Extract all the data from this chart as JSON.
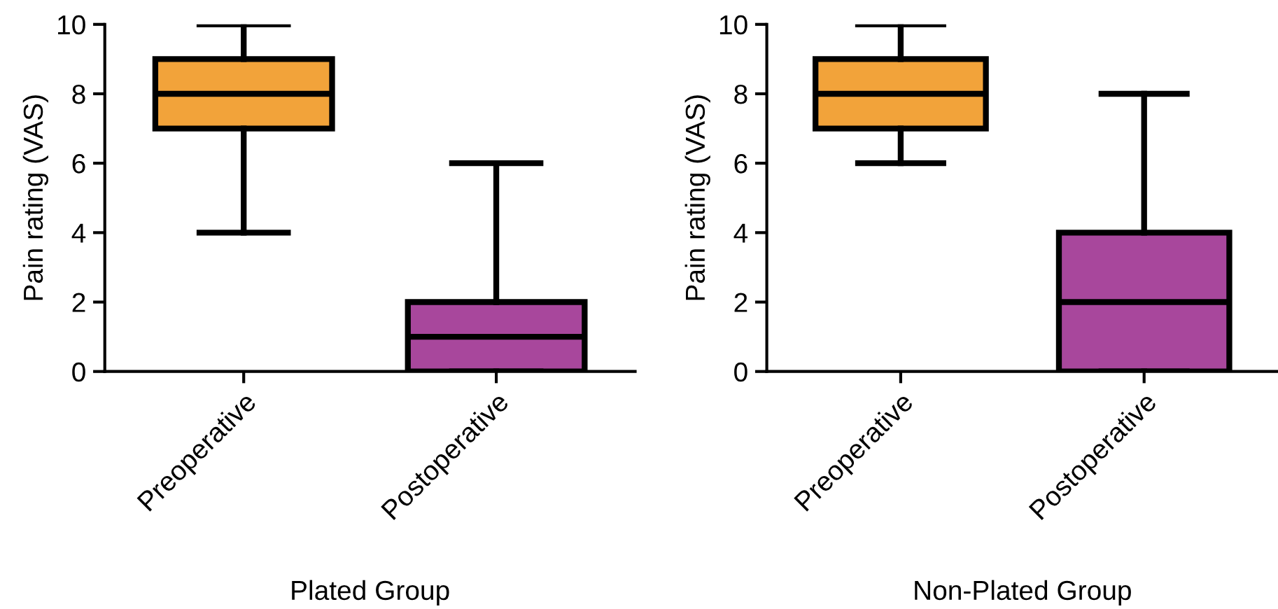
{
  "chart_data": [
    {
      "type": "box",
      "xlabel": "Plated Group",
      "ylabel": "Pain rating (VAS)",
      "categories": [
        "Preoperative",
        "Postoperative"
      ],
      "colors": [
        "#f2a33a",
        "#a8479c"
      ],
      "boxes": [
        {
          "low": 4,
          "q1": 7,
          "median": 8,
          "q3": 9,
          "high": 10
        },
        {
          "low": 0,
          "q1": 0,
          "median": 1,
          "q3": 2,
          "high": 6
        }
      ],
      "ylim": [
        0,
        10
      ],
      "yticks": [
        0,
        2,
        4,
        6,
        8,
        10
      ],
      "grid": false
    },
    {
      "type": "box",
      "xlabel": "Non-Plated Group",
      "ylabel": "Pain rating (VAS)",
      "categories": [
        "Preoperative",
        "Postoperative"
      ],
      "colors": [
        "#f2a33a",
        "#a8479c"
      ],
      "boxes": [
        {
          "low": 6,
          "q1": 7,
          "median": 8,
          "q3": 9,
          "high": 10
        },
        {
          "low": 0,
          "q1": 0,
          "median": 2,
          "q3": 4,
          "high": 8
        }
      ],
      "ylim": [
        0,
        10
      ],
      "yticks": [
        0,
        2,
        4,
        6,
        8,
        10
      ],
      "grid": false
    }
  ]
}
